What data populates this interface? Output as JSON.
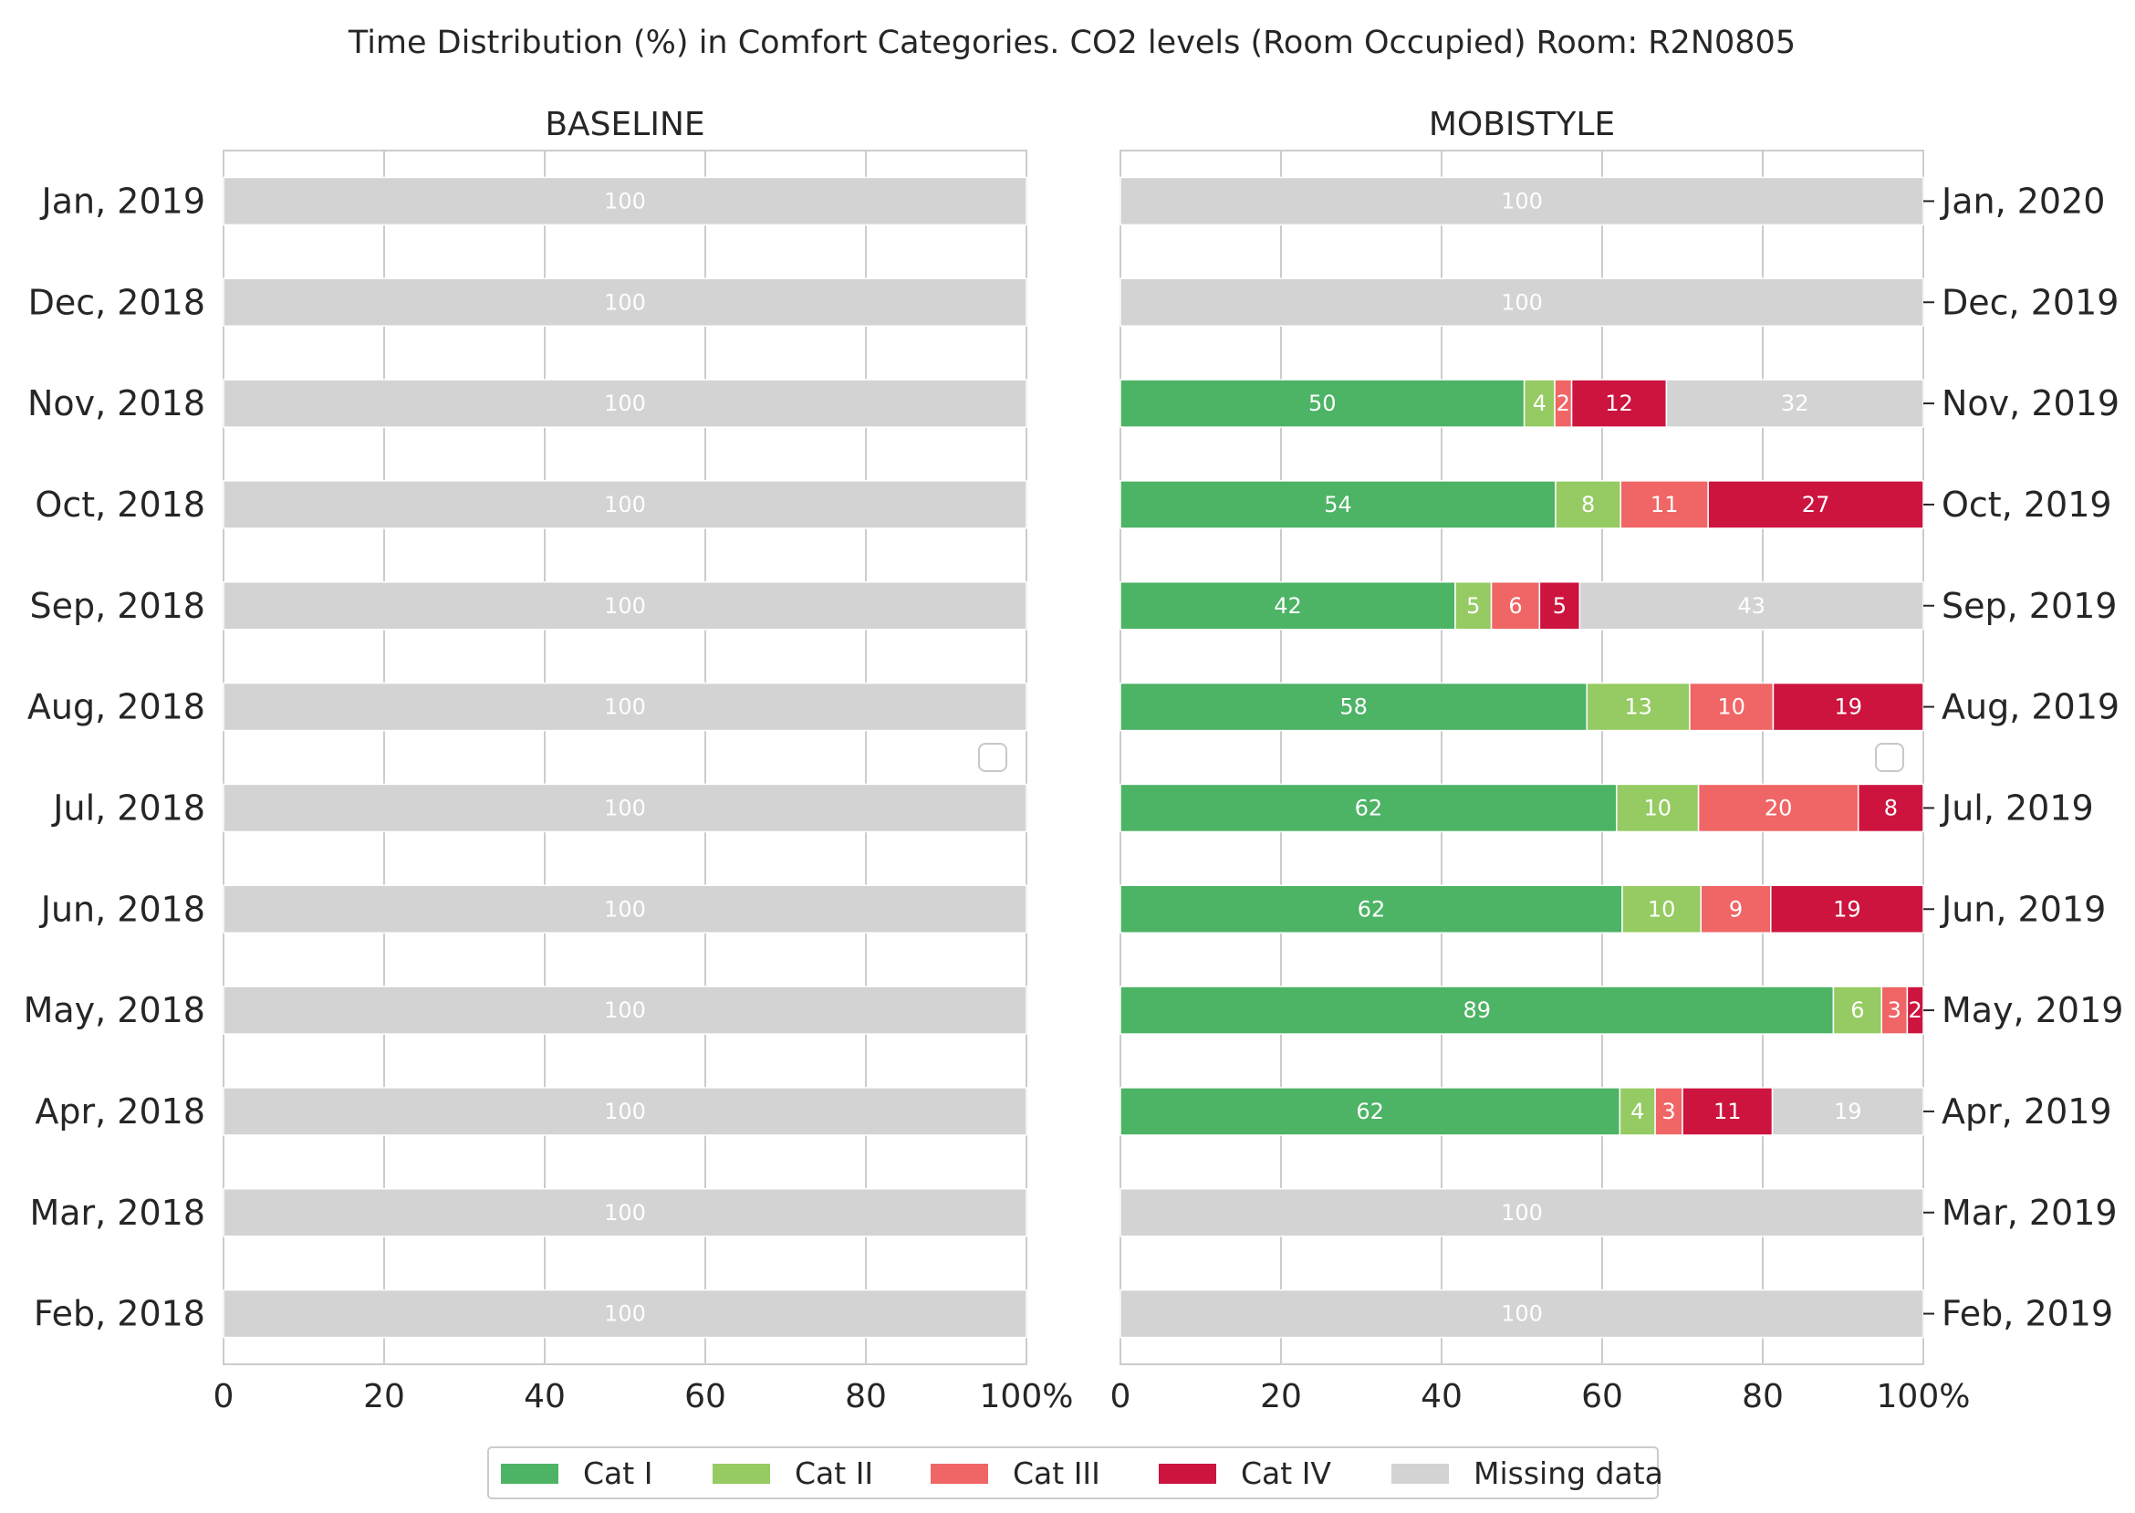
{
  "chart_data": {
    "type": "bar",
    "orientation": "horizontal",
    "stacked": true,
    "title": "Time Distribution (%) in Comfort Categories. CO2 levels (Room Occupied) Room: R2N0805",
    "xlim": [
      0,
      100
    ],
    "x_ticks": [
      "0",
      "20",
      "40",
      "60",
      "80",
      "100%"
    ],
    "grid": true,
    "legend_position": "bottom-center",
    "legend": [
      {
        "name": "Cat I",
        "color": "#4db365"
      },
      {
        "name": "Cat II",
        "color": "#95cb62"
      },
      {
        "name": "Cat III",
        "color": "#f06565"
      },
      {
        "name": "Cat IV",
        "color": "#cc143f"
      },
      {
        "name": "Missing data",
        "color": "#d3d3d3"
      }
    ],
    "panels": [
      {
        "title": "BASELINE",
        "categories": [
          "Jan, 2019",
          "Dec, 2018",
          "Nov, 2018",
          "Oct, 2018",
          "Sep, 2018",
          "Aug, 2018",
          "Jul, 2018",
          "Jun, 2018",
          "May, 2018",
          "Apr, 2018",
          "Mar, 2018",
          "Feb, 2018"
        ],
        "rows": [
          [
            {
              "series": "Missing data",
              "value": 100,
              "label": "100"
            }
          ],
          [
            {
              "series": "Missing data",
              "value": 100,
              "label": "100"
            }
          ],
          [
            {
              "series": "Missing data",
              "value": 100,
              "label": "100"
            }
          ],
          [
            {
              "series": "Missing data",
              "value": 100,
              "label": "100"
            }
          ],
          [
            {
              "series": "Missing data",
              "value": 100,
              "label": "100"
            }
          ],
          [
            {
              "series": "Missing data",
              "value": 100,
              "label": "100"
            }
          ],
          [
            {
              "series": "Missing data",
              "value": 100,
              "label": "100"
            }
          ],
          [
            {
              "series": "Missing data",
              "value": 100,
              "label": "100"
            }
          ],
          [
            {
              "series": "Missing data",
              "value": 100,
              "label": "100"
            }
          ],
          [
            {
              "series": "Missing data",
              "value": 100,
              "label": "100"
            }
          ],
          [
            {
              "series": "Missing data",
              "value": 100,
              "label": "100"
            }
          ],
          [
            {
              "series": "Missing data",
              "value": 100,
              "label": "100"
            }
          ]
        ]
      },
      {
        "title": "MOBISTYLE",
        "categories": [
          "Jan, 2020",
          "Dec, 2019",
          "Nov, 2019",
          "Oct, 2019",
          "Sep, 2019",
          "Aug, 2019",
          "Jul, 2019",
          "Jun, 2019",
          "May, 2019",
          "Apr, 2019",
          "Mar, 2019",
          "Feb, 2019"
        ],
        "rows": [
          [
            {
              "series": "Missing data",
              "value": 100,
              "label": "100"
            }
          ],
          [
            {
              "series": "Missing data",
              "value": 100,
              "label": "100"
            }
          ],
          [
            {
              "series": "Cat I",
              "value": 50.3,
              "label": "50"
            },
            {
              "series": "Cat II",
              "value": 3.8,
              "label": "4"
            },
            {
              "series": "Cat III",
              "value": 2.1,
              "label": "2"
            },
            {
              "series": "Cat IV",
              "value": 11.8,
              "label": "12"
            },
            {
              "series": "Missing data",
              "value": 32,
              "label": "32"
            }
          ],
          [
            {
              "series": "Cat I",
              "value": 54.2,
              "label": "54"
            },
            {
              "series": "Cat II",
              "value": 8.1,
              "label": "8"
            },
            {
              "series": "Cat III",
              "value": 10.9,
              "label": "11"
            },
            {
              "series": "Cat IV",
              "value": 26.8,
              "label": "27"
            }
          ],
          [
            {
              "series": "Cat I",
              "value": 41.7,
              "label": "42"
            },
            {
              "series": "Cat II",
              "value": 4.5,
              "label": "5"
            },
            {
              "series": "Cat III",
              "value": 6.0,
              "label": "6"
            },
            {
              "series": "Cat IV",
              "value": 5.0,
              "label": "5"
            },
            {
              "series": "Missing data",
              "value": 42.8,
              "label": "43"
            }
          ],
          [
            {
              "series": "Cat I",
              "value": 58.1,
              "label": "58"
            },
            {
              "series": "Cat II",
              "value": 12.8,
              "label": "13"
            },
            {
              "series": "Cat III",
              "value": 10.4,
              "label": "10"
            },
            {
              "series": "Cat IV",
              "value": 18.7,
              "label": "19"
            }
          ],
          [
            {
              "series": "Cat I",
              "value": 61.8,
              "label": "62"
            },
            {
              "series": "Cat II",
              "value": 10.2,
              "label": "10"
            },
            {
              "series": "Cat III",
              "value": 19.9,
              "label": "20"
            },
            {
              "series": "Cat IV",
              "value": 8.1,
              "label": "8"
            }
          ],
          [
            {
              "series": "Cat I",
              "value": 62.5,
              "label": "62"
            },
            {
              "series": "Cat II",
              "value": 9.8,
              "label": "10"
            },
            {
              "series": "Cat III",
              "value": 8.7,
              "label": "9"
            },
            {
              "series": "Cat IV",
              "value": 19.0,
              "label": "19"
            }
          ],
          [
            {
              "series": "Cat I",
              "value": 88.8,
              "label": "89"
            },
            {
              "series": "Cat II",
              "value": 6.0,
              "label": "6"
            },
            {
              "series": "Cat III",
              "value": 3.2,
              "label": "3"
            },
            {
              "series": "Cat IV",
              "value": 2.0,
              "label": "2"
            }
          ],
          [
            {
              "series": "Cat I",
              "value": 62.2,
              "label": "62"
            },
            {
              "series": "Cat II",
              "value": 4.4,
              "label": "4"
            },
            {
              "series": "Cat III",
              "value": 3.4,
              "label": "3"
            },
            {
              "series": "Cat IV",
              "value": 11.2,
              "label": "11"
            },
            {
              "series": "Missing data",
              "value": 18.8,
              "label": "19"
            }
          ],
          [
            {
              "series": "Missing data",
              "value": 100,
              "label": "100"
            }
          ],
          [
            {
              "series": "Missing data",
              "value": 100,
              "label": "100"
            }
          ]
        ]
      }
    ]
  }
}
